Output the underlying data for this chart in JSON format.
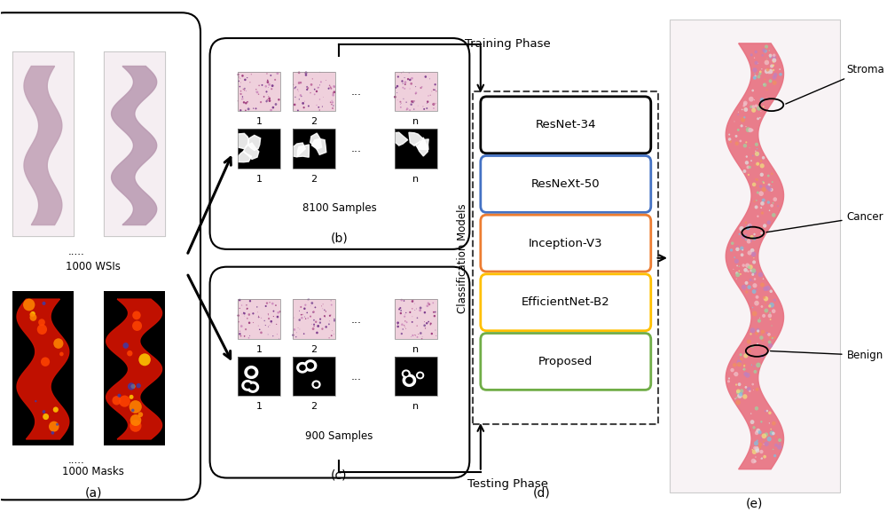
{
  "bg_color": "#ffffff",
  "panel_labels": [
    "(a)",
    "(b)",
    "(c)",
    "(d)",
    "(e)"
  ],
  "model_names": [
    "ResNet-34",
    "ResNeXt-50",
    "Inception-V3",
    "EfficientNet-B2",
    "Proposed"
  ],
  "model_colors": [
    "#000000",
    "#4472c4",
    "#ed7d31",
    "#ffc000",
    "#70ad47"
  ],
  "wsi_label": "1000 WSIs",
  "mask_label": "1000 Masks",
  "train_label": "8100 Samples",
  "test_label": "900 Samples",
  "training_phase": "Training Phase",
  "testing_phase": "Testing Phase",
  "class_models": "Classification Models",
  "annotations": [
    "Stroma",
    "Cancer",
    "Benign"
  ],
  "dots": "....."
}
